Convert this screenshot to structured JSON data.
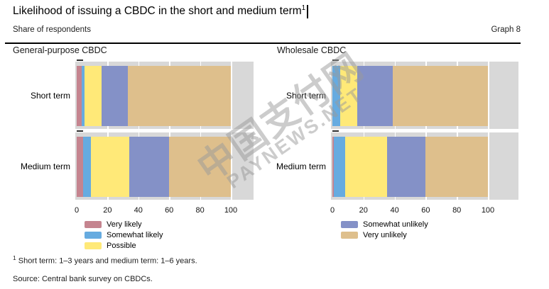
{
  "header": {
    "title": "Likelihood of issuing a CBDC in the short and medium term",
    "title_footnote_marker": "1",
    "subtitle": "Share of respondents",
    "graph_label": "Graph 8"
  },
  "chart_data": [
    {
      "type": "bar",
      "orientation": "horizontal",
      "stacked": true,
      "title": "General-purpose CBDC",
      "categories": [
        "Short term",
        "Medium term"
      ],
      "series": [
        {
          "name": "Very likely",
          "color": "#c5848f",
          "values": [
            3,
            4
          ]
        },
        {
          "name": "Somewhat likely",
          "color": "#66abe0",
          "values": [
            2,
            5
          ]
        },
        {
          "name": "Possible",
          "color": "#ffe978",
          "values": [
            11,
            25
          ]
        },
        {
          "name": "Somewhat unlikely",
          "color": "#8491c7",
          "values": [
            17,
            26
          ]
        },
        {
          "name": "Very unlikely",
          "color": "#debf8c",
          "values": [
            67,
            40
          ]
        }
      ],
      "x_ticks": [
        0,
        20,
        40,
        60,
        80,
        100
      ],
      "xlim": [
        0,
        116
      ],
      "grid": true,
      "plot_background": "#d8d8d8",
      "unit": "percent"
    },
    {
      "type": "bar",
      "orientation": "horizontal",
      "stacked": true,
      "title": "Wholesale CBDC",
      "categories": [
        "Short term",
        "Medium term"
      ],
      "series": [
        {
          "name": "Very likely",
          "color": "#c5848f",
          "values": [
            0,
            1
          ]
        },
        {
          "name": "Somewhat likely",
          "color": "#66abe0",
          "values": [
            5,
            7
          ]
        },
        {
          "name": "Possible",
          "color": "#ffe978",
          "values": [
            11,
            27
          ]
        },
        {
          "name": "Somewhat unlikely",
          "color": "#8491c7",
          "values": [
            23,
            25
          ]
        },
        {
          "name": "Very unlikely",
          "color": "#debf8c",
          "values": [
            61,
            40
          ]
        }
      ],
      "x_ticks": [
        0,
        20,
        40,
        60,
        80,
        100
      ],
      "xlim": [
        0,
        120
      ],
      "grid": true,
      "plot_background": "#d8d8d8",
      "unit": "percent"
    }
  ],
  "legend": {
    "left_column": [
      {
        "label": "Very likely",
        "color": "#c5848f"
      },
      {
        "label": "Somewhat likely",
        "color": "#66abe0"
      },
      {
        "label": "Possible",
        "color": "#ffe978"
      }
    ],
    "right_column": [
      {
        "label": "Somewhat unlikely",
        "color": "#8491c7"
      },
      {
        "label": "Very unlikely",
        "color": "#debf8c"
      }
    ]
  },
  "footnote": {
    "marker": "1",
    "text": "Short term: 1–3 years and medium term: 1–6 years."
  },
  "source": "Source: Central bank survey on CBDCs.",
  "watermark": {
    "line1": "中国支付网",
    "line2": "PAYNEWS.NET"
  }
}
